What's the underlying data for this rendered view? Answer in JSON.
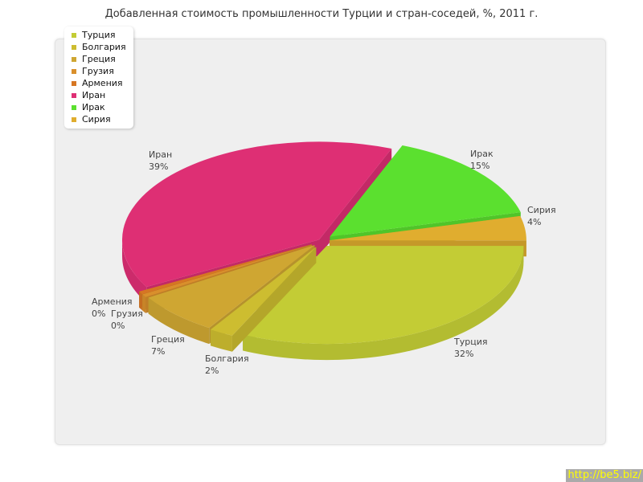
{
  "chart_data": {
    "type": "pie",
    "title": "Добавленная стоимость промышленности Турции и стран-соседей, %, 2011 г.",
    "categories": [
      "Турция",
      "Болгария",
      "Греция",
      "Грузия",
      "Армения",
      "Иран",
      "Ирак",
      "Сирия"
    ],
    "values": [
      32,
      2,
      7,
      0,
      0,
      39,
      15,
      4
    ],
    "labels": [
      "32%",
      "2%",
      "7%",
      "0%",
      "0%",
      "39%",
      "15%",
      "4%"
    ],
    "colors": [
      "#c3cc35",
      "#cdbd30",
      "#cfa632",
      "#d98f2c",
      "#d67623",
      "#de2f74",
      "#5be02f",
      "#e0ad2f"
    ],
    "style": "3d-exploded",
    "legend": "top-left"
  },
  "watermark": "http://be5.biz/"
}
